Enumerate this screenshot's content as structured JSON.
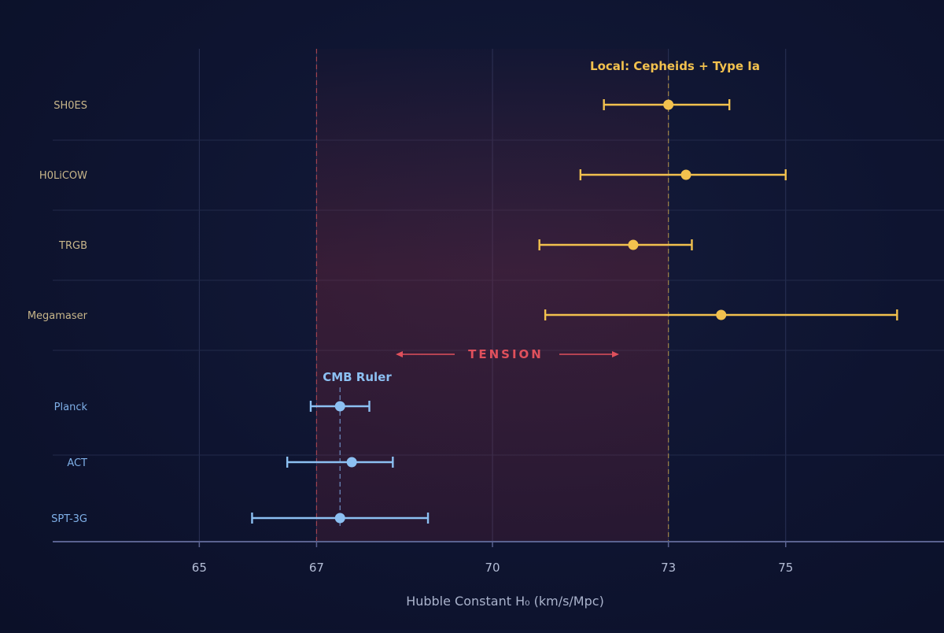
{
  "chart_data": {
    "type": "scatter",
    "subtype": "forest-plot-error-bars",
    "xlabel": "Hubble Constant H₀ (km/s/Mpc)",
    "xticks": [
      65,
      67,
      70,
      73,
      75
    ],
    "xlim": [
      62.5,
      77.7
    ],
    "groups": [
      {
        "name": "Local: Cepheids + Type Ia",
        "color": "#f2c14e",
        "reference_value": 73.0,
        "points": [
          {
            "label": "SH0ES",
            "value": 73.0,
            "low": 71.9,
            "high": 74.04
          },
          {
            "label": "H0LiCOW",
            "value": 73.3,
            "low": 71.5,
            "high": 75.0
          },
          {
            "label": "TRGB",
            "value": 72.4,
            "low": 70.8,
            "high": 73.4
          },
          {
            "label": "Megamaser",
            "value": 73.9,
            "low": 70.9,
            "high": 76.9
          }
        ]
      },
      {
        "name": "CMB Ruler",
        "color": "#8cc0f2",
        "reference_value": 67.4,
        "points": [
          {
            "label": "Planck",
            "value": 67.4,
            "low": 66.9,
            "high": 67.9
          },
          {
            "label": "ACT",
            "value": 67.6,
            "low": 66.5,
            "high": 68.3
          },
          {
            "label": "SPT-3G",
            "value": 67.4,
            "low": 65.9,
            "high": 68.9
          }
        ]
      }
    ],
    "tension_band": {
      "from": 67.0,
      "to": 73.0,
      "label": "TENSION",
      "color": "#e0505c"
    },
    "grid": true
  }
}
